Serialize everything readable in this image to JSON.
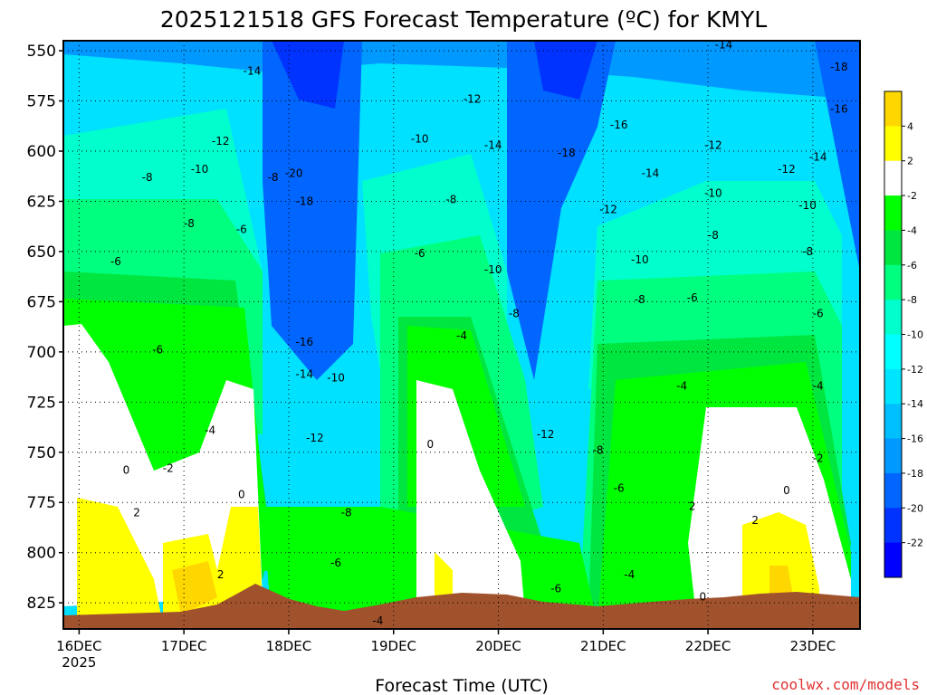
{
  "chart_data": {
    "type": "heatmap",
    "title": "2025121518 GFS Forecast Temperature (ºC) for KMYL",
    "xlabel": "Forecast Time (UTC)",
    "ylabel": "",
    "x_ticks": [
      "16DEC",
      "17DEC",
      "18DEC",
      "19DEC",
      "20DEC",
      "21DEC",
      "22DEC",
      "23DEC"
    ],
    "x_subtick": "2025",
    "y_ticks": [
      550,
      575,
      600,
      625,
      650,
      675,
      700,
      725,
      750,
      775,
      800,
      825
    ],
    "y_range": [
      545,
      838
    ],
    "x_range": [
      -0.15,
      7.45
    ],
    "y_axis_inverted": true,
    "grid": true,
    "colorbar": {
      "ticks": [
        "4",
        "2",
        "-2",
        "-4",
        "-6",
        "-8",
        "-10",
        "-12",
        "-14",
        "-16",
        "-18",
        "-20",
        "-22"
      ],
      "bands": [
        {
          "color": "#ffd700"
        },
        {
          "color": "#ffff00"
        },
        {
          "color": "#ffffff"
        },
        {
          "color": "#00ff00"
        },
        {
          "color": "#00e640"
        },
        {
          "color": "#00ff7f"
        },
        {
          "color": "#00ffcc"
        },
        {
          "color": "#00ffff"
        },
        {
          "color": "#00e5ff"
        },
        {
          "color": "#00bfff"
        },
        {
          "color": "#0099ff"
        },
        {
          "color": "#0066ff"
        },
        {
          "color": "#0033ff"
        },
        {
          "color": "#0000ff"
        }
      ]
    },
    "contour_labels": [
      {
        "text": "-14",
        "x": 1.65,
        "y": 560
      },
      {
        "text": "-20",
        "x": 2.05,
        "y": 611
      },
      {
        "text": "-18",
        "x": 2.15,
        "y": 625
      },
      {
        "text": "-16",
        "x": 2.15,
        "y": 695
      },
      {
        "text": "-14",
        "x": 2.15,
        "y": 711
      },
      {
        "text": "-10",
        "x": 2.45,
        "y": 713
      },
      {
        "text": "-12",
        "x": 2.25,
        "y": 743
      },
      {
        "text": "-8",
        "x": 2.55,
        "y": 780
      },
      {
        "text": "-6",
        "x": 2.45,
        "y": 805
      },
      {
        "text": "-4",
        "x": 2.85,
        "y": 834
      },
      {
        "text": "-12",
        "x": 1.35,
        "y": 595
      },
      {
        "text": "-10",
        "x": 1.15,
        "y": 609
      },
      {
        "text": "-8",
        "x": 0.65,
        "y": 613
      },
      {
        "text": "-8",
        "x": 1.85,
        "y": 613
      },
      {
        "text": "-8",
        "x": 1.05,
        "y": 636
      },
      {
        "text": "-6",
        "x": 1.55,
        "y": 639
      },
      {
        "text": "-6",
        "x": 0.35,
        "y": 655
      },
      {
        "text": "-6",
        "x": 0.75,
        "y": 699
      },
      {
        "text": "-4",
        "x": 1.25,
        "y": 739
      },
      {
        "text": "-2",
        "x": 0.85,
        "y": 758
      },
      {
        "text": "0",
        "x": 0.45,
        "y": 759
      },
      {
        "text": "0",
        "x": 1.55,
        "y": 771
      },
      {
        "text": "2",
        "x": 0.55,
        "y": 780
      },
      {
        "text": "2",
        "x": 1.35,
        "y": 811
      },
      {
        "text": "-12",
        "x": 3.75,
        "y": 574
      },
      {
        "text": "-10",
        "x": 3.25,
        "y": 594
      },
      {
        "text": "-14",
        "x": 3.95,
        "y": 597
      },
      {
        "text": "-8",
        "x": 3.55,
        "y": 624
      },
      {
        "text": "-6",
        "x": 3.25,
        "y": 651
      },
      {
        "text": "-10",
        "x": 3.95,
        "y": 659
      },
      {
        "text": "-8",
        "x": 4.15,
        "y": 681
      },
      {
        "text": "-4",
        "x": 3.65,
        "y": 692
      },
      {
        "text": "0",
        "x": 3.35,
        "y": 746
      },
      {
        "text": "-12",
        "x": 4.45,
        "y": 741
      },
      {
        "text": "-6",
        "x": 4.55,
        "y": 818
      },
      {
        "text": "-18",
        "x": 4.65,
        "y": 601
      },
      {
        "text": "-16",
        "x": 5.15,
        "y": 587
      },
      {
        "text": "-14",
        "x": 5.45,
        "y": 611
      },
      {
        "text": "-12",
        "x": 5.05,
        "y": 629
      },
      {
        "text": "-10",
        "x": 5.35,
        "y": 654
      },
      {
        "text": "-8",
        "x": 5.35,
        "y": 674
      },
      {
        "text": "-8",
        "x": 4.95,
        "y": 749
      },
      {
        "text": "-6",
        "x": 5.15,
        "y": 768
      },
      {
        "text": "-4",
        "x": 5.25,
        "y": 811
      },
      {
        "text": "-14",
        "x": 6.15,
        "y": 547
      },
      {
        "text": "-12",
        "x": 6.05,
        "y": 597
      },
      {
        "text": "-10",
        "x": 6.05,
        "y": 621
      },
      {
        "text": "-8",
        "x": 6.05,
        "y": 642
      },
      {
        "text": "-6",
        "x": 5.85,
        "y": 673
      },
      {
        "text": "-4",
        "x": 5.75,
        "y": 717
      },
      {
        "text": "-4",
        "x": 7.05,
        "y": 717
      },
      {
        "text": "-6",
        "x": 7.05,
        "y": 681
      },
      {
        "text": "-8",
        "x": 6.95,
        "y": 650
      },
      {
        "text": "-10",
        "x": 6.95,
        "y": 627
      },
      {
        "text": "-12",
        "x": 6.75,
        "y": 609
      },
      {
        "text": "-14",
        "x": 7.05,
        "y": 603
      },
      {
        "text": "-16",
        "x": 7.25,
        "y": 579
      },
      {
        "text": "-18",
        "x": 7.25,
        "y": 558
      },
      {
        "text": "-2",
        "x": 7.05,
        "y": 753
      },
      {
        "text": "0",
        "x": 6.75,
        "y": 769
      },
      {
        "text": "2",
        "x": 5.85,
        "y": 777
      },
      {
        "text": "2",
        "x": 6.45,
        "y": 784
      },
      {
        "text": "0",
        "x": 5.95,
        "y": 822
      }
    ]
  },
  "credit": "coolwx.com/models"
}
